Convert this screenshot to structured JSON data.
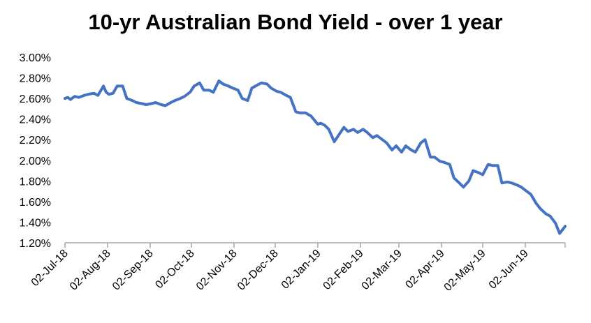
{
  "colors": {
    "line": "#4472C4",
    "axis": "#A6A6A6",
    "text": "#000000",
    "background": "#FFFFFF"
  },
  "chart_data": {
    "type": "line",
    "title": "10-yr Australian Bond Yield - over 1 year",
    "xlabel": "",
    "ylabel": "",
    "grid": false,
    "legend": "none",
    "ylim": [
      1.2,
      3.0
    ],
    "xlim": [
      "2018-07-02",
      "2019-07-01"
    ],
    "y_tick_values": [
      1.2,
      1.4,
      1.6,
      1.8,
      2.0,
      2.2,
      2.4,
      2.6,
      2.8,
      3.0
    ],
    "y_tick_labels": [
      "1.20%",
      "1.40%",
      "1.60%",
      "1.80%",
      "2.00%",
      "2.20%",
      "2.40%",
      "2.60%",
      "2.80%",
      "3.00%"
    ],
    "x_tick_values": [
      "2018-07-02",
      "2018-08-02",
      "2018-09-02",
      "2018-10-02",
      "2018-11-02",
      "2018-12-02",
      "2019-01-02",
      "2019-02-02",
      "2019-03-02",
      "2019-04-02",
      "2019-05-02",
      "2019-06-02"
    ],
    "x_tick_labels": [
      "02-Jul-18",
      "02-Aug-18",
      "02-Sep-18",
      "02-Oct-18",
      "02-Nov-18",
      "02-Dec-18",
      "02-Jan-19",
      "02-Feb-19",
      "02-Mar-19",
      "02-Apr-19",
      "02-May-19",
      "02-Jun-19"
    ],
    "series": [
      {
        "x": [
          "2018-07-02",
          "2018-07-04",
          "2018-07-06",
          "2018-07-09",
          "2018-07-12",
          "2018-07-16",
          "2018-07-19",
          "2018-07-23",
          "2018-07-26",
          "2018-07-30",
          "2018-08-01",
          "2018-08-03",
          "2018-08-06",
          "2018-08-09",
          "2018-08-13",
          "2018-08-16",
          "2018-08-20",
          "2018-08-23",
          "2018-08-27",
          "2018-08-30",
          "2018-09-03",
          "2018-09-06",
          "2018-09-10",
          "2018-09-13",
          "2018-09-17",
          "2018-09-20",
          "2018-09-24",
          "2018-09-27",
          "2018-10-01",
          "2018-10-04",
          "2018-10-08",
          "2018-10-11",
          "2018-10-15",
          "2018-10-18",
          "2018-10-22",
          "2018-10-25",
          "2018-10-29",
          "2018-11-01",
          "2018-11-05",
          "2018-11-08",
          "2018-11-12",
          "2018-11-15",
          "2018-11-19",
          "2018-11-22",
          "2018-11-26",
          "2018-11-29",
          "2018-12-03",
          "2018-12-06",
          "2018-12-10",
          "2018-12-13",
          "2018-12-17",
          "2018-12-20",
          "2018-12-24",
          "2018-12-28",
          "2019-01-02",
          "2019-01-04",
          "2019-01-07",
          "2019-01-10",
          "2019-01-14",
          "2019-01-17",
          "2019-01-21",
          "2019-01-24",
          "2019-01-28",
          "2019-01-31",
          "2019-02-04",
          "2019-02-07",
          "2019-02-11",
          "2019-02-14",
          "2019-02-18",
          "2019-02-21",
          "2019-02-25",
          "2019-02-28",
          "2019-03-04",
          "2019-03-07",
          "2019-03-11",
          "2019-03-14",
          "2019-03-18",
          "2019-03-21",
          "2019-03-25",
          "2019-03-28",
          "2019-04-01",
          "2019-04-04",
          "2019-04-08",
          "2019-04-11",
          "2019-04-15",
          "2019-04-18",
          "2019-04-22",
          "2019-04-25",
          "2019-04-29",
          "2019-05-02",
          "2019-05-06",
          "2019-05-09",
          "2019-05-13",
          "2019-05-16",
          "2019-05-20",
          "2019-05-23",
          "2019-05-27",
          "2019-05-30",
          "2019-06-03",
          "2019-06-06",
          "2019-06-10",
          "2019-06-13",
          "2019-06-17",
          "2019-06-20",
          "2019-06-24",
          "2019-06-27",
          "2019-07-01"
        ],
        "values": [
          2.6,
          2.61,
          2.59,
          2.62,
          2.61,
          2.63,
          2.64,
          2.65,
          2.63,
          2.72,
          2.66,
          2.64,
          2.65,
          2.72,
          2.72,
          2.6,
          2.58,
          2.56,
          2.55,
          2.54,
          2.55,
          2.56,
          2.54,
          2.53,
          2.56,
          2.58,
          2.6,
          2.62,
          2.66,
          2.72,
          2.75,
          2.68,
          2.68,
          2.66,
          2.77,
          2.74,
          2.72,
          2.7,
          2.68,
          2.6,
          2.58,
          2.7,
          2.73,
          2.75,
          2.74,
          2.7,
          2.67,
          2.66,
          2.63,
          2.61,
          2.47,
          2.46,
          2.46,
          2.43,
          2.35,
          2.36,
          2.34,
          2.3,
          2.18,
          2.24,
          2.32,
          2.28,
          2.3,
          2.27,
          2.3,
          2.27,
          2.22,
          2.24,
          2.2,
          2.17,
          2.1,
          2.14,
          2.08,
          2.14,
          2.1,
          2.08,
          2.17,
          2.2,
          2.03,
          2.03,
          1.99,
          1.98,
          1.96,
          1.83,
          1.78,
          1.74,
          1.8,
          1.9,
          1.88,
          1.86,
          1.96,
          1.95,
          1.95,
          1.78,
          1.79,
          1.78,
          1.76,
          1.74,
          1.7,
          1.67,
          1.58,
          1.53,
          1.48,
          1.46,
          1.39,
          1.29,
          1.36
        ]
      }
    ]
  }
}
